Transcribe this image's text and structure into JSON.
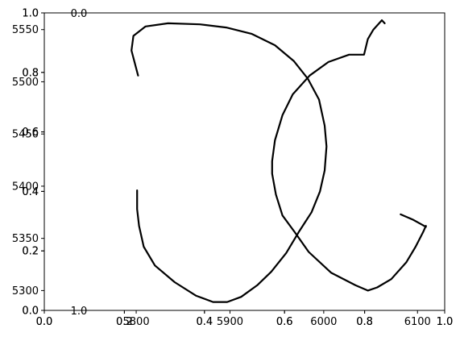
{
  "chart_data": {
    "type": "line",
    "title": "",
    "xlabel": "",
    "ylabel": "",
    "grid": false,
    "series": [
      {
        "values_x": [
          5802,
          5795,
          5797,
          5810,
          5834,
          5868,
          5896,
          5923,
          5948,
          5968,
          5983,
          5995,
          6001,
          6003,
          6001,
          5996,
          5987,
          5974,
          5960,
          5944,
          5929,
          5912,
          5897,
          5882,
          5864,
          5841,
          5820,
          5808,
          5803,
          5801,
          5801
        ],
        "values_y": [
          5506,
          5530,
          5544,
          5553,
          5556,
          5555,
          5552,
          5546,
          5535,
          5520,
          5503,
          5483,
          5458,
          5438,
          5415,
          5395,
          5375,
          5357,
          5336,
          5318,
          5305,
          5294,
          5289,
          5289,
          5295,
          5308,
          5324,
          5342,
          5362,
          5378,
          5396
        ],
        "color": "#000000"
      },
      {
        "values_x": [
          6065,
          6062,
          6053,
          6047,
          6043,
          6027,
          6005,
          5985,
          5967,
          5956,
          5948,
          5945,
          5945,
          5949,
          5956,
          5969,
          5984,
          6008,
          6034,
          6047,
          6057,
          6072,
          6088,
          6098,
          6106,
          6109,
          6109,
          6105,
          6095,
          6082
        ],
        "values_y": [
          5556,
          5559,
          5550,
          5541,
          5526,
          5526,
          5519,
          5506,
          5488,
          5468,
          5444,
          5424,
          5412,
          5392,
          5372,
          5356,
          5337,
          5317,
          5305,
          5300,
          5303,
          5311,
          5327,
          5342,
          5356,
          5362,
          5361,
          5363,
          5368,
          5373
        ],
        "color": "#000000"
      }
    ],
    "primary_axes": {
      "xlim": [
        5702,
        6129
      ],
      "ylim": [
        5281,
        5566
      ],
      "x_ticks": [
        5800,
        5900,
        6000,
        6100
      ],
      "y_ticks": [
        5300,
        5350,
        5400,
        5450,
        5500,
        5550
      ],
      "x_tick_labels": [
        "5800",
        "5900",
        "6000",
        "6100"
      ],
      "y_tick_labels": [
        "5300",
        "5350",
        "5400",
        "5450",
        "5500",
        "5550"
      ]
    },
    "overlay_axes": [
      {
        "xlim": [
          0,
          1
        ],
        "ylim": [
          0,
          1
        ],
        "x_ticks": [
          0.0,
          0.2,
          0.4,
          0.6,
          0.8,
          1.0
        ],
        "y_ticks": [
          0.0,
          0.2,
          0.4,
          0.6,
          0.8,
          1.0
        ],
        "x_tick_labels": [
          "0.0",
          "0.2",
          "0.4",
          "0.6",
          "0.8",
          "1.0"
        ],
        "y_tick_labels": [
          "0.0",
          "0.2",
          "0.4",
          "0.6",
          "0.8",
          "1.0"
        ]
      },
      {
        "xlim": [
          0,
          1
        ],
        "ylim": [
          0,
          1
        ],
        "x_ticks": [
          0.0,
          0.2,
          0.4,
          0.6,
          0.8,
          1.0
        ],
        "y_ticks": [
          0.0,
          0.2,
          0.4,
          0.6,
          0.8,
          1.0
        ],
        "x_tick_labels": [
          "0.0",
          "0.2",
          "0.4",
          "0.6",
          "0.8",
          "1.0"
        ],
        "y_tick_labels": [
          "0.0",
          "0.2",
          "0.4",
          "0.6",
          "0.8",
          "1.0"
        ]
      }
    ],
    "stray_labels": [
      "1.0",
      "0.0"
    ]
  }
}
